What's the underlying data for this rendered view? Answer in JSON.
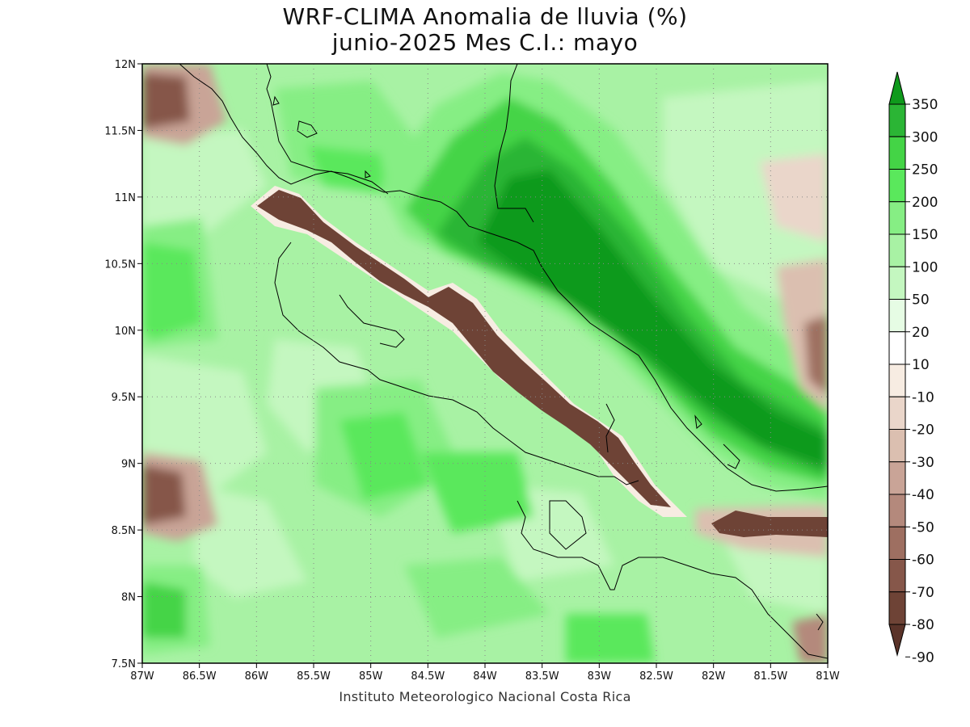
{
  "title_line1": "WRF-CLIMA Anomalia de lluvia (%)",
  "title_line2": "junio-2025 Mes C.I.: mayo",
  "credit": "Instituto Meteorologico Nacional Costa Rica",
  "map": {
    "lon_range": [
      -87,
      -81
    ],
    "lat_range": [
      7.5,
      12
    ],
    "x_ticks": [
      {
        "lon": -87,
        "label": "87W"
      },
      {
        "lon": -86.5,
        "label": "86.5W"
      },
      {
        "lon": -86,
        "label": "86W"
      },
      {
        "lon": -85.5,
        "label": "85.5W"
      },
      {
        "lon": -85,
        "label": "85W"
      },
      {
        "lon": -84.5,
        "label": "84.5W"
      },
      {
        "lon": -84,
        "label": "84W"
      },
      {
        "lon": -83.5,
        "label": "83.5W"
      },
      {
        "lon": -83,
        "label": "83W"
      },
      {
        "lon": -82.5,
        "label": "82.5W"
      },
      {
        "lon": -82,
        "label": "82W"
      },
      {
        "lon": -81.5,
        "label": "81.5W"
      },
      {
        "lon": -81,
        "label": "81W"
      }
    ],
    "y_ticks": [
      {
        "lat": 12,
        "label": "12N"
      },
      {
        "lat": 11.5,
        "label": "11.5N"
      },
      {
        "lat": 11,
        "label": "11N"
      },
      {
        "lat": 10.5,
        "label": "10.5N"
      },
      {
        "lat": 10,
        "label": "10N"
      },
      {
        "lat": 9.5,
        "label": "9.5N"
      },
      {
        "lat": 9,
        "label": "9N"
      },
      {
        "lat": 8.5,
        "label": "8.5N"
      },
      {
        "lat": 8,
        "label": "8N"
      },
      {
        "lat": 7.5,
        "label": "7.5N"
      }
    ],
    "grid": "dotted"
  },
  "colorbar": {
    "levels": [
      "350",
      "300",
      "250",
      "200",
      "150",
      "100",
      "50",
      "20",
      "10",
      "-10",
      "-20",
      "-30",
      "-40",
      "-50",
      "-60",
      "-70",
      "-80",
      "-90"
    ],
    "colors_top_to_bottom": [
      "#0f9a1c",
      "#2bb535",
      "#44d446",
      "#5ae85c",
      "#86ee84",
      "#a8f2a4",
      "#c4f7c0",
      "#e6fce4",
      "#ffffff",
      "#f7ece2",
      "#ead6ca",
      "#dbbfb0",
      "#c9a497",
      "#b4897c",
      "#9e6f61",
      "#86574a",
      "#6e4336",
      "#5a3329"
    ]
  },
  "colors": {
    "background_green": "#a8f2a4",
    "frame": "#000000"
  }
}
